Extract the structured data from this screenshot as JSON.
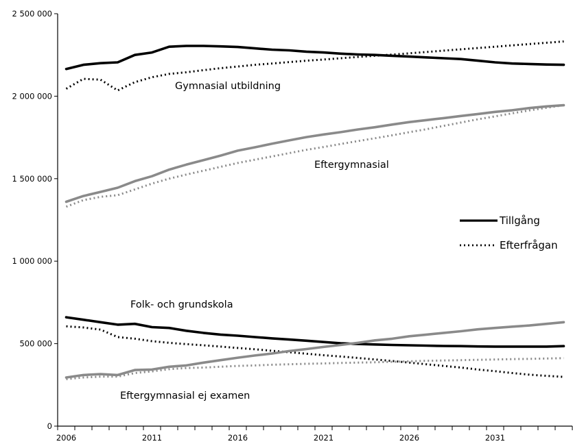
{
  "chart_data": {
    "type": "line",
    "title": "",
    "xlabel": "",
    "ylabel": "",
    "x": [
      2006,
      2007,
      2008,
      2009,
      2010,
      2011,
      2012,
      2013,
      2014,
      2015,
      2016,
      2017,
      2018,
      2019,
      2020,
      2021,
      2022,
      2023,
      2024,
      2025,
      2026,
      2027,
      2028,
      2029,
      2030,
      2031,
      2032,
      2033,
      2034,
      2035
    ],
    "xlim": [
      2005.5,
      2035.5
    ],
    "x_tick_labels": [
      "2006",
      "2011",
      "2016",
      "2021",
      "2026",
      "2031"
    ],
    "x_tick_values": [
      2006,
      2011,
      2016,
      2021,
      2026,
      2031
    ],
    "ylim": [
      0,
      2500000
    ],
    "y_ticks": [
      0,
      500000,
      1000000,
      1500000,
      2000000,
      2500000
    ],
    "y_tick_labels": [
      "0",
      "500 000",
      "1 000 000",
      "1 500 000",
      "2 000 000",
      "2 500 000"
    ],
    "grid": false,
    "legend_position": "right",
    "legend": [
      {
        "label": "Tillgång",
        "style": "solid",
        "color": "#000000"
      },
      {
        "label": "Efterfrågan",
        "style": "dotted",
        "color": "#000000"
      }
    ],
    "series": [
      {
        "group": "Gymnasial utbildning",
        "kind": "Tillgång",
        "style": "solid",
        "color": "#000000",
        "values": [
          2165000,
          2190000,
          2200000,
          2205000,
          2250000,
          2265000,
          2300000,
          2305000,
          2305000,
          2302000,
          2298000,
          2290000,
          2282000,
          2278000,
          2270000,
          2265000,
          2258000,
          2253000,
          2250000,
          2245000,
          2240000,
          2235000,
          2230000,
          2225000,
          2215000,
          2205000,
          2198000,
          2195000,
          2192000,
          2190000
        ]
      },
      {
        "group": "Gymnasial utbildning",
        "kind": "Efterfrågan",
        "style": "dotted",
        "color": "#000000",
        "values": [
          2045000,
          2105000,
          2100000,
          2035000,
          2085000,
          2115000,
          2135000,
          2145000,
          2158000,
          2170000,
          2180000,
          2190000,
          2198000,
          2207000,
          2215000,
          2222000,
          2230000,
          2238000,
          2245000,
          2252000,
          2260000,
          2268000,
          2276000,
          2284000,
          2292000,
          2300000,
          2308000,
          2316000,
          2324000,
          2332000
        ]
      },
      {
        "group": "Eftergymnasial",
        "kind": "Tillgång",
        "style": "solid",
        "color": "#8a8a8a",
        "values": [
          1360000,
          1395000,
          1420000,
          1445000,
          1485000,
          1515000,
          1555000,
          1585000,
          1612000,
          1640000,
          1670000,
          1690000,
          1712000,
          1732000,
          1752000,
          1768000,
          1782000,
          1798000,
          1812000,
          1828000,
          1843000,
          1855000,
          1867000,
          1880000,
          1892000,
          1905000,
          1915000,
          1928000,
          1938000,
          1945000
        ]
      },
      {
        "group": "Eftergymnasial",
        "kind": "Efterfrågan",
        "style": "dotted",
        "color": "#8a8a8a",
        "values": [
          1330000,
          1370000,
          1390000,
          1400000,
          1435000,
          1470000,
          1500000,
          1525000,
          1548000,
          1572000,
          1595000,
          1615000,
          1635000,
          1655000,
          1675000,
          1692000,
          1710000,
          1728000,
          1745000,
          1763000,
          1782000,
          1800000,
          1820000,
          1840000,
          1860000,
          1878000,
          1896000,
          1914000,
          1930000,
          1945000
        ]
      },
      {
        "group": "Folk- och grundskola",
        "kind": "Tillgång",
        "style": "solid",
        "color": "#000000",
        "values": [
          660000,
          645000,
          630000,
          615000,
          620000,
          600000,
          595000,
          578000,
          565000,
          555000,
          548000,
          540000,
          532000,
          525000,
          518000,
          510000,
          502000,
          498000,
          495000,
          492000,
          490000,
          488000,
          486000,
          485000,
          483000,
          482000,
          482000,
          482000,
          482000,
          485000
        ]
      },
      {
        "group": "Folk- och grundskola",
        "kind": "Efterfrågan",
        "style": "dotted",
        "color": "#000000",
        "values": [
          605000,
          598000,
          585000,
          540000,
          530000,
          515000,
          505000,
          497000,
          490000,
          482000,
          474000,
          466000,
          457000,
          448000,
          439000,
          430000,
          422000,
          413000,
          404000,
          395000,
          385000,
          375000,
          365000,
          355000,
          343000,
          333000,
          322000,
          312000,
          305000,
          298000
        ]
      },
      {
        "group": "Eftergymnasial ej examen",
        "kind": "Tillgång",
        "style": "solid",
        "color": "#8a8a8a",
        "values": [
          295000,
          310000,
          315000,
          310000,
          340000,
          343000,
          360000,
          368000,
          385000,
          400000,
          415000,
          428000,
          440000,
          455000,
          467000,
          480000,
          492000,
          505000,
          520000,
          530000,
          545000,
          555000,
          565000,
          575000,
          587000,
          595000,
          603000,
          610000,
          620000,
          630000
        ]
      },
      {
        "group": "Eftergymnasial ej examen",
        "kind": "Efterfrågan",
        "style": "dotted",
        "color": "#8a8a8a",
        "values": [
          285000,
          295000,
          300000,
          300000,
          322000,
          332000,
          345000,
          352000,
          355000,
          360000,
          365000,
          368000,
          372000,
          375000,
          378000,
          380000,
          383000,
          385000,
          387000,
          390000,
          393000,
          396000,
          398000,
          400000,
          402000,
          404000,
          406000,
          408000,
          410000,
          412000
        ]
      }
    ],
    "annotations": [
      {
        "text": "Gymnasial utbildning"
      },
      {
        "text": "Eftergymnasial"
      },
      {
        "text": "Folk- och grundskola"
      },
      {
        "text": "Eftergymnasial ej examen"
      }
    ]
  }
}
